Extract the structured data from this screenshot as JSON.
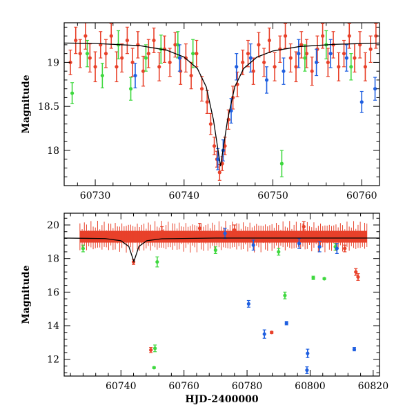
{
  "colors": {
    "red": "#e8412a",
    "green": "#3fd83f",
    "blue": "#1f5fe0",
    "model": "#000000"
  },
  "chart_data": [
    {
      "type": "scatter",
      "title": "",
      "xlabel": "",
      "ylabel": "Magnitude",
      "xlim": [
        60726.5,
        60762
      ],
      "ylim": [
        19.45,
        17.6
      ],
      "y_inverted": true,
      "xticks": [
        60730,
        60740,
        60750,
        60760
      ],
      "yticks": [
        18,
        18.5,
        19
      ],
      "grid": false,
      "legend": "none",
      "model_curve": {
        "peak_x": 60744.1,
        "peak_mag": 17.82,
        "baseline_mag": 19.22,
        "points": [
          [
            60726.5,
            19.22
          ],
          [
            60730,
            19.215
          ],
          [
            60735,
            19.19
          ],
          [
            60738,
            19.14
          ],
          [
            60740,
            19.06
          ],
          [
            60741.5,
            18.93
          ],
          [
            60742.5,
            18.72
          ],
          [
            60743.3,
            18.35
          ],
          [
            60744.1,
            17.82
          ],
          [
            60744.9,
            18.35
          ],
          [
            60745.7,
            18.72
          ],
          [
            60746.7,
            18.93
          ],
          [
            60748.2,
            19.06
          ],
          [
            60750,
            19.13
          ],
          [
            60753,
            19.18
          ],
          [
            60757,
            19.205
          ],
          [
            60762,
            19.22
          ]
        ]
      },
      "series": [
        {
          "color": "red",
          "points": [
            [
              60727.2,
              19.0,
              0.14
            ],
            [
              60727.8,
              19.25,
              0.15
            ],
            [
              60728.3,
              19.1,
              0.16
            ],
            [
              60728.9,
              19.3,
              0.15
            ],
            [
              60729.4,
              19.05,
              0.16
            ],
            [
              60730.0,
              18.95,
              0.17
            ],
            [
              60730.6,
              19.2,
              0.15
            ],
            [
              60731.2,
              19.1,
              0.16
            ],
            [
              60731.8,
              19.3,
              0.14
            ],
            [
              60732.4,
              18.95,
              0.17
            ],
            [
              60733.0,
              19.05,
              0.16
            ],
            [
              60733.6,
              19.25,
              0.15
            ],
            [
              60734.2,
              19.0,
              0.16
            ],
            [
              60734.8,
              19.2,
              0.15
            ],
            [
              60735.4,
              18.9,
              0.17
            ],
            [
              60736.0,
              19.1,
              0.16
            ],
            [
              60736.6,
              19.25,
              0.14
            ],
            [
              60737.2,
              18.95,
              0.16
            ],
            [
              60737.8,
              19.15,
              0.15
            ],
            [
              60738.4,
              19.0,
              0.16
            ],
            [
              60739.0,
              19.2,
              0.14
            ],
            [
              60739.6,
              18.9,
              0.15
            ],
            [
              60740.2,
              19.05,
              0.16
            ],
            [
              60740.8,
              18.85,
              0.15
            ],
            [
              60741.4,
              19.1,
              0.15
            ],
            [
              60742.0,
              18.7,
              0.14
            ],
            [
              60742.6,
              18.55,
              0.13
            ],
            [
              60743.0,
              18.3,
              0.12
            ],
            [
              60743.4,
              18.05,
              0.1
            ],
            [
              60743.7,
              17.9,
              0.09
            ],
            [
              60744.0,
              17.75,
              0.09
            ],
            [
              60744.3,
              17.85,
              0.08
            ],
            [
              60744.6,
              18.05,
              0.1
            ],
            [
              60745.0,
              18.35,
              0.11
            ],
            [
              60745.5,
              18.6,
              0.13
            ],
            [
              60746.0,
              18.75,
              0.14
            ],
            [
              60746.6,
              19.0,
              0.14
            ],
            [
              60747.2,
              19.1,
              0.15
            ],
            [
              60747.8,
              18.9,
              0.15
            ],
            [
              60748.4,
              19.2,
              0.14
            ],
            [
              60749.0,
              19.0,
              0.16
            ],
            [
              60749.6,
              19.25,
              0.14
            ],
            [
              60750.2,
              18.95,
              0.16
            ],
            [
              60750.8,
              19.15,
              0.15
            ],
            [
              60751.4,
              19.3,
              0.14
            ],
            [
              60752.0,
              19.05,
              0.16
            ],
            [
              60752.6,
              18.95,
              0.17
            ],
            [
              60753.2,
              19.2,
              0.15
            ],
            [
              60753.8,
              19.1,
              0.16
            ],
            [
              60754.4,
              18.9,
              0.16
            ],
            [
              60755.0,
              19.15,
              0.15
            ],
            [
              60755.6,
              19.3,
              0.14
            ],
            [
              60756.2,
              19.0,
              0.16
            ],
            [
              60756.8,
              19.2,
              0.15
            ],
            [
              60757.4,
              18.95,
              0.16
            ],
            [
              60758.0,
              19.1,
              0.15
            ],
            [
              60758.6,
              19.3,
              0.14
            ],
            [
              60759.2,
              19.05,
              0.16
            ],
            [
              60759.8,
              19.2,
              0.15
            ],
            [
              60760.4,
              18.95,
              0.16
            ],
            [
              60761.0,
              19.15,
              0.15
            ],
            [
              60761.6,
              19.3,
              0.14
            ]
          ]
        },
        {
          "color": "green",
          "points": [
            [
              60727.4,
              18.65,
              0.12
            ],
            [
              60729.1,
              19.1,
              0.15
            ],
            [
              60730.8,
              18.85,
              0.14
            ],
            [
              60732.6,
              19.2,
              0.16
            ],
            [
              60734.0,
              18.7,
              0.13
            ],
            [
              60735.7,
              19.05,
              0.15
            ],
            [
              60737.4,
              19.15,
              0.16
            ],
            [
              60739.3,
              19.2,
              0.15
            ],
            [
              60741.0,
              19.1,
              0.16
            ],
            [
              60751.0,
              17.85,
              0.15
            ],
            [
              60753.6,
              19.05,
              0.15
            ],
            [
              60756.0,
              19.2,
              0.16
            ],
            [
              60758.8,
              18.95,
              0.15
            ]
          ]
        },
        {
          "color": "blue",
          "points": [
            [
              60734.5,
              18.85,
              0.14
            ],
            [
              60739.5,
              19.05,
              0.15
            ],
            [
              60743.8,
              17.9,
              0.12
            ],
            [
              60744.4,
              18.0,
              0.12
            ],
            [
              60745.3,
              18.45,
              0.14
            ],
            [
              60745.9,
              18.95,
              0.15
            ],
            [
              60747.5,
              19.05,
              0.16
            ],
            [
              60749.3,
              18.8,
              0.15
            ],
            [
              60751.2,
              18.9,
              0.15
            ],
            [
              60752.9,
              19.1,
              0.16
            ],
            [
              60754.9,
              19.0,
              0.15
            ],
            [
              60756.5,
              19.1,
              0.16
            ],
            [
              60758.3,
              19.05,
              0.15
            ],
            [
              60760.0,
              18.55,
              0.12
            ],
            [
              60761.5,
              18.7,
              0.13
            ]
          ]
        }
      ]
    },
    {
      "type": "scatter",
      "title": "",
      "xlabel": "HJD-2400000",
      "ylabel": "Magnitude",
      "xlim": [
        60722,
        60822
      ],
      "ylim": [
        20.7,
        11.0
      ],
      "y_inverted": true,
      "xticks": [
        60740,
        60760,
        60780,
        60800,
        60820
      ],
      "yticks": [
        12,
        14,
        16,
        18,
        20
      ],
      "grid": false,
      "legend": "none",
      "model_curve": {
        "peak_x": 60744.1,
        "peak_mag": 17.82,
        "baseline_mag": 19.22,
        "points": [
          [
            60722,
            19.22
          ],
          [
            60735,
            19.19
          ],
          [
            60740,
            19.06
          ],
          [
            60742.5,
            18.72
          ],
          [
            60744.1,
            17.82
          ],
          [
            60745.7,
            18.72
          ],
          [
            60748.2,
            19.06
          ],
          [
            60753,
            19.18
          ],
          [
            60770,
            19.22
          ],
          [
            60822,
            19.22
          ]
        ]
      },
      "band": {
        "color": "red",
        "x_start": 60727,
        "x_end": 60818,
        "center_mag": 19.3,
        "half_width": 0.35
      },
      "series": [
        {
          "color": "red",
          "points": [
            [
              60749.5,
              12.55,
              0.15
            ],
            [
              60787.8,
              13.6,
              0.06
            ],
            [
              60814.5,
              17.2,
              0.2
            ],
            [
              60815.2,
              16.9,
              0.2
            ],
            [
              60811.0,
              18.6,
              0.2
            ],
            [
              60744.0,
              17.8,
              0.15
            ],
            [
              60753.0,
              19.6,
              0.3
            ],
            [
              60765.0,
              19.8,
              0.3
            ],
            [
              60776.0,
              19.7,
              0.3
            ],
            [
              60798.0,
              19.9,
              0.3
            ]
          ]
        },
        {
          "color": "green",
          "points": [
            [
              60750.5,
              11.5,
              0.05
            ],
            [
              60750.8,
              12.65,
              0.2
            ],
            [
              60751.5,
              17.8,
              0.3
            ],
            [
              60792.0,
              15.8,
              0.2
            ],
            [
              60801.0,
              16.85,
              0.1
            ],
            [
              60804.5,
              16.8,
              0.05
            ],
            [
              60728.0,
              18.6,
              0.2
            ],
            [
              60770.0,
              18.5,
              0.2
            ],
            [
              60790.0,
              18.4,
              0.2
            ],
            [
              60808.0,
              18.7,
              0.2
            ]
          ]
        },
        {
          "color": "blue",
          "points": [
            [
              60780.5,
              15.3,
              0.2
            ],
            [
              60785.5,
              13.5,
              0.25
            ],
            [
              60792.5,
              14.15,
              0.1
            ],
            [
              60799.0,
              11.35,
              0.2
            ],
            [
              60799.2,
              12.35,
              0.25
            ],
            [
              60814.0,
              12.6,
              0.1
            ],
            [
              60796.5,
              18.9,
              0.3
            ],
            [
              60803.0,
              18.7,
              0.3
            ],
            [
              60808.5,
              18.6,
              0.3
            ],
            [
              60782.0,
              18.8,
              0.3
            ],
            [
              60773.0,
              19.5,
              0.3
            ]
          ]
        }
      ]
    }
  ]
}
